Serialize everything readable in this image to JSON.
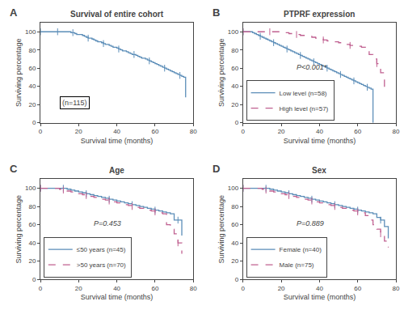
{
  "chart_data": [
    {
      "type": "step",
      "panel_label": "A",
      "title": "Survival of entire cohort",
      "xlabel": "Survival time (months)",
      "ylabel": "Surviving percentage",
      "xlim": [
        0,
        80
      ],
      "ylim": [
        0,
        110
      ],
      "xticks": [
        0,
        20,
        40,
        60,
        80
      ],
      "yticks": [
        0,
        20,
        40,
        60,
        80,
        100
      ],
      "grid": false,
      "annotations": [
        {
          "text": "(n=115)",
          "x": 10,
          "y": 15,
          "style": "boxed"
        }
      ],
      "series": [
        {
          "color": "#5b8db8",
          "line_style": "solid",
          "x": [
            0,
            2,
            3,
            4,
            5,
            6,
            7,
            8,
            9,
            10,
            11,
            12,
            13,
            14,
            15,
            16,
            17,
            18,
            19,
            20,
            21,
            22,
            23,
            24,
            25,
            26,
            27,
            28,
            29,
            30,
            31,
            32,
            33,
            34,
            35,
            36,
            37,
            38,
            39,
            40,
            41,
            42,
            43,
            44,
            45,
            46,
            47,
            48,
            49,
            50,
            51,
            52,
            53,
            54,
            55,
            56,
            57,
            58,
            59,
            60,
            61,
            62,
            63,
            64,
            65,
            66,
            67,
            68,
            69,
            70,
            71,
            72,
            73,
            74,
            75,
            76
          ],
          "values": [
            100,
            100,
            100,
            100,
            100,
            100,
            100,
            100,
            100,
            100,
            100,
            100,
            100,
            100,
            100,
            99,
            99,
            98,
            97,
            97,
            97,
            96,
            95,
            94,
            93,
            93,
            92,
            91,
            90,
            89,
            89,
            88,
            87,
            86,
            86,
            85,
            84,
            83,
            83,
            82,
            81,
            80,
            79,
            79,
            78,
            77,
            76,
            75,
            75,
            74,
            73,
            72,
            71,
            71,
            70,
            69,
            68,
            67,
            66,
            65,
            64,
            63,
            62,
            61,
            60,
            59,
            58,
            57,
            56,
            55,
            54,
            53,
            52,
            51,
            50,
            28
          ],
          "censor_x": [
            0,
            9,
            17,
            25,
            33,
            41,
            49,
            57,
            65,
            73
          ],
          "censor_y": [
            100,
            100,
            99,
            93,
            87,
            81,
            75,
            68,
            60,
            52
          ]
        }
      ]
    },
    {
      "type": "step",
      "panel_label": "B",
      "title": "PTPRF expression",
      "xlabel": "Survival time (months)",
      "ylabel": "Surviving percentage",
      "xlim": [
        0,
        80
      ],
      "ylim": [
        0,
        110
      ],
      "xticks": [
        0,
        20,
        40,
        60,
        80
      ],
      "yticks": [
        0,
        20,
        40,
        60,
        80,
        100
      ],
      "grid": false,
      "legend": "lower left",
      "annotations": [
        {
          "text": "P<0.001*",
          "x": 27,
          "y": 55,
          "style": "italic"
        }
      ],
      "series": [
        {
          "name": "Low level (n=58)",
          "color": "#5b8db8",
          "line_style": "solid",
          "x": [
            0,
            2,
            3,
            5,
            6,
            7,
            8,
            9,
            10,
            11,
            12,
            13,
            14,
            15,
            16,
            17,
            18,
            19,
            20,
            21,
            22,
            23,
            24,
            25,
            26,
            27,
            28,
            29,
            30,
            31,
            32,
            33,
            34,
            35,
            36,
            37,
            38,
            39,
            40,
            41,
            42,
            43,
            44,
            45,
            46,
            47,
            48,
            49,
            50,
            51,
            52,
            53,
            54,
            55,
            56,
            57,
            58,
            59,
            60,
            61,
            62,
            63,
            64,
            65,
            66,
            67,
            68
          ],
          "values": [
            100,
            100,
            100,
            99,
            98,
            97,
            96,
            95,
            94,
            93,
            92,
            91,
            90,
            89,
            88,
            87,
            86,
            85,
            84,
            83,
            82,
            81,
            80,
            79,
            78,
            77,
            76,
            75,
            74,
            73,
            72,
            71,
            70,
            69,
            68,
            67,
            66,
            65,
            64,
            63,
            62,
            61,
            60,
            59,
            58,
            57,
            56,
            55,
            54,
            53,
            52,
            51,
            50,
            49,
            48,
            47,
            46,
            45,
            44,
            43,
            42,
            41,
            40,
            39,
            38,
            37,
            0
          ],
          "censor_x": [
            0,
            9,
            16,
            23,
            30,
            37,
            44,
            51,
            58,
            65
          ],
          "censor_y": [
            100,
            95,
            88,
            81,
            74,
            67,
            60,
            53,
            46,
            39
          ]
        },
        {
          "name": "High level (n=57)",
          "color": "#c06090",
          "line_style": "dashed",
          "x": [
            0,
            2,
            4,
            6,
            8,
            10,
            12,
            14,
            16,
            18,
            20,
            22,
            24,
            26,
            28,
            30,
            32,
            34,
            36,
            38,
            40,
            42,
            44,
            46,
            48,
            50,
            52,
            54,
            56,
            58,
            60,
            62,
            64,
            66,
            68,
            70,
            72,
            74
          ],
          "values": [
            100,
            100,
            100,
            100,
            100,
            100,
            100,
            100,
            100,
            100,
            99,
            99,
            98,
            97,
            97,
            96,
            95,
            95,
            94,
            93,
            92,
            91,
            90,
            89,
            89,
            88,
            87,
            86,
            85,
            85,
            84,
            83,
            82,
            75,
            70,
            65,
            55,
            35
          ],
          "censor_x": [
            0,
            14,
            28,
            42,
            56,
            70
          ],
          "censor_y": [
            100,
            100,
            97,
            91,
            85,
            65
          ]
        }
      ]
    },
    {
      "type": "step",
      "panel_label": "C",
      "title": "Age",
      "xlabel": "Survival time (months)",
      "ylabel": "Surviving percentage",
      "xlim": [
        0,
        80
      ],
      "ylim": [
        0,
        110
      ],
      "xticks": [
        0,
        20,
        40,
        60,
        80
      ],
      "yticks": [
        0,
        20,
        40,
        60,
        80,
        100
      ],
      "grid": false,
      "legend": "lower left",
      "annotations": [
        {
          "text": "P=0.453",
          "x": 27,
          "y": 55,
          "style": "italic"
        }
      ],
      "series": [
        {
          "name": "≤50 years (n=45)",
          "color": "#5b8db8",
          "line_style": "solid",
          "x": [
            0,
            2,
            4,
            6,
            8,
            10,
            12,
            14,
            16,
            18,
            20,
            22,
            24,
            26,
            28,
            30,
            32,
            34,
            36,
            38,
            40,
            42,
            44,
            46,
            48,
            50,
            52,
            54,
            56,
            58,
            60,
            62,
            64,
            66,
            68,
            70,
            72,
            74
          ],
          "values": [
            100,
            100,
            100,
            100,
            100,
            100,
            100,
            99,
            98,
            97,
            96,
            95,
            94,
            93,
            92,
            91,
            90,
            89,
            88,
            87,
            86,
            85,
            84,
            83,
            82,
            81,
            80,
            79,
            78,
            77,
            76,
            75,
            74,
            73,
            72,
            65,
            65,
            48
          ],
          "censor_x": [
            0,
            12,
            24,
            36,
            48,
            60,
            72
          ],
          "censor_y": [
            100,
            100,
            94,
            88,
            82,
            76,
            65
          ]
        },
        {
          "name": ">50 years (n=70)",
          "color": "#c06090",
          "line_style": "dashed",
          "x": [
            0,
            2,
            4,
            6,
            8,
            10,
            12,
            14,
            16,
            18,
            20,
            22,
            24,
            26,
            28,
            30,
            32,
            34,
            36,
            38,
            40,
            42,
            44,
            46,
            48,
            50,
            52,
            54,
            56,
            58,
            60,
            62,
            64,
            66,
            68,
            70,
            72,
            74
          ],
          "values": [
            100,
            100,
            100,
            100,
            100,
            99,
            98,
            97,
            96,
            95,
            94,
            93,
            92,
            91,
            90,
            89,
            88,
            87,
            86,
            85,
            84,
            83,
            82,
            81,
            80,
            79,
            78,
            77,
            76,
            75,
            74,
            73,
            72,
            60,
            55,
            50,
            40,
            28
          ],
          "censor_x": [
            0,
            12,
            24,
            36,
            48,
            60,
            72
          ],
          "censor_y": [
            100,
            98,
            92,
            86,
            80,
            74,
            40
          ]
        }
      ]
    },
    {
      "type": "step",
      "panel_label": "D",
      "title": "Sex",
      "xlabel": "Survival time (months)",
      "ylabel": "Surviving percentage",
      "xlim": [
        0,
        80
      ],
      "ylim": [
        0,
        110
      ],
      "xticks": [
        0,
        20,
        40,
        60,
        80
      ],
      "yticks": [
        0,
        20,
        40,
        60,
        80,
        100
      ],
      "grid": false,
      "legend": "lower left",
      "annotations": [
        {
          "text": "P=0.889",
          "x": 27,
          "y": 55,
          "style": "italic"
        }
      ],
      "series": [
        {
          "name": "Female (n=40)",
          "color": "#5b8db8",
          "line_style": "solid",
          "x": [
            0,
            2,
            4,
            6,
            8,
            10,
            12,
            14,
            16,
            18,
            20,
            22,
            24,
            26,
            28,
            30,
            32,
            34,
            36,
            38,
            40,
            42,
            44,
            46,
            48,
            50,
            52,
            54,
            56,
            58,
            60,
            62,
            64,
            66,
            68,
            70,
            72,
            74,
            76
          ],
          "values": [
            100,
            100,
            100,
            100,
            100,
            100,
            100,
            99,
            98,
            97,
            96,
            95,
            94,
            93,
            92,
            91,
            90,
            89,
            88,
            87,
            86,
            85,
            84,
            83,
            82,
            81,
            80,
            79,
            78,
            77,
            76,
            75,
            74,
            73,
            72,
            68,
            65,
            58,
            45
          ],
          "censor_x": [
            0,
            12,
            24,
            36,
            48,
            60,
            72
          ],
          "censor_y": [
            100,
            100,
            94,
            88,
            82,
            76,
            65
          ]
        },
        {
          "name": "Male (n=75)",
          "color": "#c06090",
          "line_style": "dashed",
          "x": [
            0,
            2,
            4,
            6,
            8,
            10,
            12,
            14,
            16,
            18,
            20,
            22,
            24,
            26,
            28,
            30,
            32,
            34,
            36,
            38,
            40,
            42,
            44,
            46,
            48,
            50,
            52,
            54,
            56,
            58,
            60,
            62,
            64,
            66,
            68,
            70,
            72,
            74,
            76
          ],
          "values": [
            100,
            100,
            100,
            100,
            100,
            99,
            98,
            97,
            96,
            95,
            94,
            93,
            92,
            91,
            90,
            89,
            88,
            87,
            86,
            85,
            84,
            83,
            82,
            81,
            80,
            79,
            78,
            77,
            76,
            75,
            74,
            73,
            70,
            65,
            60,
            55,
            50,
            42,
            35
          ],
          "censor_x": [
            0,
            12,
            24,
            36,
            48,
            60,
            72
          ],
          "censor_y": [
            100,
            98,
            92,
            86,
            80,
            74,
            50
          ]
        }
      ]
    }
  ]
}
